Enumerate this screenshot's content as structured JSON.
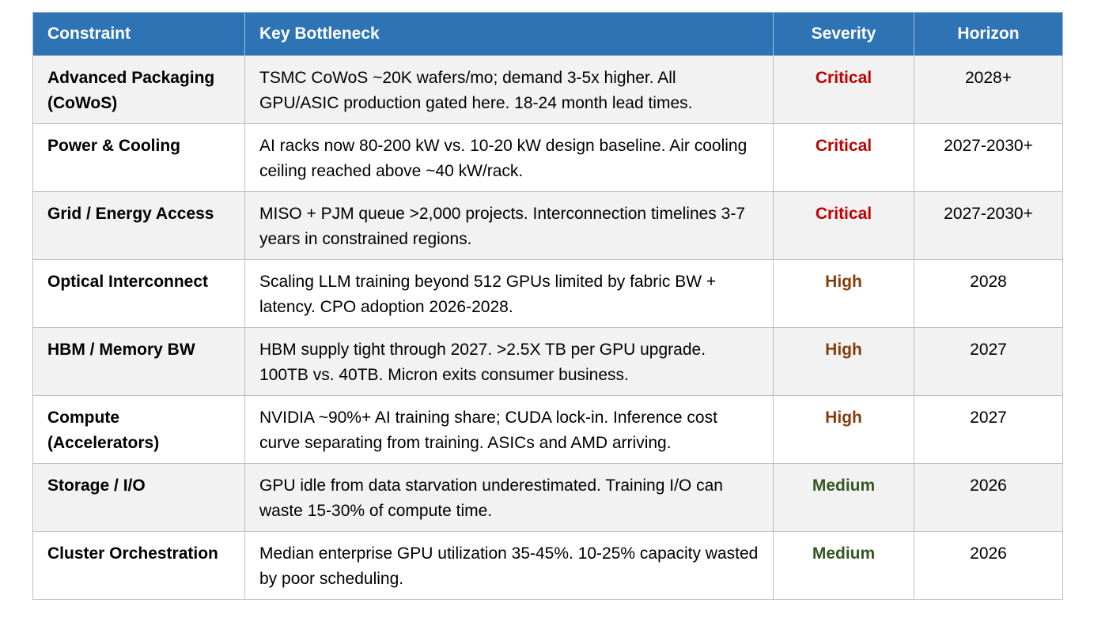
{
  "table": {
    "headers": [
      "Constraint",
      "Key Bottleneck",
      "Severity",
      "Horizon"
    ],
    "rows": [
      {
        "constraint": "Advanced Packaging (CoWoS)",
        "bottleneck": "TSMC CoWoS ~20K wafers/mo; demand 3-5x higher. All GPU/ASIC production gated here. 18-24 month lead times.",
        "severity": "Critical",
        "horizon": "2028+"
      },
      {
        "constraint": "Power & Cooling",
        "bottleneck": "AI racks now 80-200 kW vs. 10-20 kW design baseline. Air cooling ceiling reached above ~40 kW/rack.",
        "severity": "Critical",
        "horizon": "2027-2030+"
      },
      {
        "constraint": "Grid / Energy Access",
        "bottleneck": "MISO + PJM queue >2,000 projects. Interconnection timelines 3-7 years in constrained regions.",
        "severity": "Critical",
        "horizon": "2027-2030+"
      },
      {
        "constraint": "Optical Interconnect",
        "bottleneck": "Scaling LLM training beyond 512 GPUs limited by fabric BW + latency. CPO adoption 2026-2028.",
        "severity": "High",
        "horizon": "2028"
      },
      {
        "constraint": "HBM / Memory BW",
        "bottleneck": "HBM supply tight through 2027. >2.5X TB per GPU upgrade. 100TB vs. 40TB. Micron exits consumer business.",
        "severity": "High",
        "horizon": "2027"
      },
      {
        "constraint": "Compute (Accelerators)",
        "bottleneck": "NVIDIA ~90%+ AI training share; CUDA lock-in. Inference cost curve separating from training. ASICs and AMD arriving.",
        "severity": "High",
        "horizon": "2027"
      },
      {
        "constraint": "Storage / I/O",
        "bottleneck": "GPU idle from data starvation underestimated. Training I/O can waste 15-30% of compute time.",
        "severity": "Medium",
        "horizon": "2026"
      },
      {
        "constraint": "Cluster Orchestration",
        "bottleneck": "Median enterprise GPU utilization 35-45%. 10-25% capacity wasted by poor scheduling.",
        "severity": "Medium",
        "horizon": "2026"
      }
    ]
  },
  "colors": {
    "header_bg": "#2e74b5",
    "critical": "#c00000",
    "high": "#843c0c",
    "medium": "#375623",
    "row_alt": "#f2f2f2"
  }
}
